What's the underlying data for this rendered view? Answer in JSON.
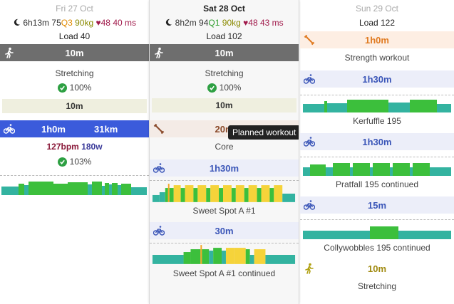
{
  "days": [
    {
      "date": "Fri 27 Oct",
      "stats": {
        "sleep": "6h13m",
        "readiness": "75",
        "quality": "Q3",
        "weight": "90kg",
        "hr": "48",
        "hrv": "40 ms"
      },
      "load": "Load 40",
      "items": [
        {
          "type": "walk",
          "duration": "10m"
        },
        {
          "name": "Stretching",
          "compliance": "100%"
        },
        {
          "sub_duration": "10m"
        },
        {
          "type": "ride",
          "duration": "1h0m",
          "distance": "31km",
          "bpm": "127bpm",
          "power": "180w",
          "compliance": "103%"
        }
      ]
    },
    {
      "date": "Sat 28 Oct",
      "stats": {
        "sleep": "8h2m",
        "readiness": "94",
        "quality": "Q1",
        "weight": "90kg",
        "hr": "48",
        "hrv": "43 ms"
      },
      "load": "Load 102",
      "items": [
        {
          "type": "walk",
          "duration": "10m"
        },
        {
          "name": "Stretching",
          "compliance": "100%"
        },
        {
          "sub_duration": "10m"
        },
        {
          "type": "strength",
          "duration": "20m",
          "name": "Core"
        },
        {
          "type": "ride",
          "duration": "1h30m",
          "name": "Sweet Spot A #1"
        },
        {
          "type": "ride",
          "duration": "30m",
          "name": "Sweet Spot A #1 continued"
        }
      ],
      "tooltip": "Planned workout"
    },
    {
      "date": "Sun 29 Oct",
      "load": "Load 122",
      "items": [
        {
          "type": "strength",
          "duration": "1h0m",
          "name": "Strength workout"
        },
        {
          "type": "ride",
          "duration": "1h30m",
          "name": "Kerfuffle 195"
        },
        {
          "type": "ride",
          "duration": "1h30m",
          "name": "Pratfall 195 continued"
        },
        {
          "type": "ride",
          "duration": "15m",
          "name": "Collywobbles 195 continued"
        },
        {
          "type": "walk",
          "duration": "10m",
          "name": "Stretching"
        }
      ]
    }
  ],
  "colors": {
    "accent_blue": "#3b5bdb",
    "zone_green": "#3cbf3c",
    "zone_teal": "#33b3a0",
    "zone_yellow": "#f5d33a",
    "ok_green": "#2ea043"
  }
}
